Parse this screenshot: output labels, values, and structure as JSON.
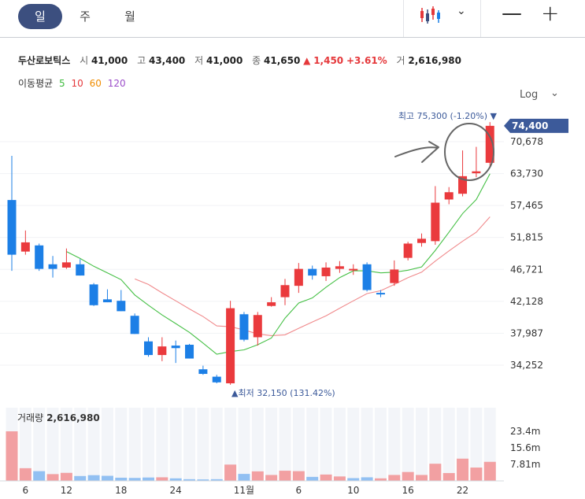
{
  "tabs": [
    {
      "label": "일",
      "active": true
    },
    {
      "label": "주",
      "active": false
    },
    {
      "label": "월",
      "active": false
    }
  ],
  "toolbar": {
    "chart_type_icon": "candlestick-icon",
    "dropdown_icon": "chevron-down-icon",
    "zoom_out_icon": "minus-icon",
    "zoom_in_icon": "plus-icon"
  },
  "stock": {
    "name": "두산로보틱스",
    "open_label": "시",
    "open": "41,000",
    "high_label": "고",
    "high": "43,400",
    "low_label": "저",
    "low": "41,000",
    "close_label": "종",
    "close": "41,650",
    "change_arrow": "▲",
    "change": "1,450",
    "change_pct": "+3.61%",
    "volume_label": "거",
    "volume": "2,616,980"
  },
  "moving_avg": {
    "label": "이동평균",
    "items": [
      {
        "period": "5",
        "color": "#3dbb3d"
      },
      {
        "period": "10",
        "color": "#e5383b"
      },
      {
        "period": "60",
        "color": "#f08c00"
      },
      {
        "period": "120",
        "color": "#9b4dca"
      }
    ]
  },
  "scale": {
    "label": "Log"
  },
  "colors": {
    "up": "#ea3a3d",
    "down": "#1c7fe6",
    "up_vol": "#f2a0a2",
    "down_vol": "#92c0f2",
    "accent": "#3c5a9a"
  },
  "chart_data": {
    "type": "candlestick",
    "scale": "log",
    "y_ticks": [
      "70,678",
      "63,730",
      "57,465",
      "51,815",
      "46,721",
      "42,128",
      "37,987",
      "34,252"
    ],
    "y_tick_values": [
      70678,
      63730,
      57465,
      51815,
      46721,
      42128,
      37987,
      34252
    ],
    "current_price_label": "74,400",
    "current_price": 74400,
    "high_annotation": {
      "label": "최고",
      "value": "75,300",
      "pct": "(-1.20%)",
      "arrow": "▼"
    },
    "low_annotation": {
      "label": "최저",
      "value": "32,150",
      "pct": "(131.42%)",
      "arrow": "▲"
    },
    "x_ticks": [
      {
        "label": "6",
        "index": 1
      },
      {
        "label": "12",
        "index": 4
      },
      {
        "label": "18",
        "index": 8
      },
      {
        "label": "24",
        "index": 12
      },
      {
        "label": "11월",
        "index": 17
      },
      {
        "label": "6",
        "index": 21
      },
      {
        "label": "10",
        "index": 25
      },
      {
        "label": "16",
        "index": 29
      },
      {
        "label": "22",
        "index": 33
      }
    ],
    "candles": [
      {
        "o": 58500,
        "h": 67500,
        "l": 46500,
        "c": 49000
      },
      {
        "o": 49500,
        "h": 53000,
        "l": 49000,
        "c": 51000
      },
      {
        "o": 50500,
        "h": 50800,
        "l": 46500,
        "c": 46800
      },
      {
        "o": 47500,
        "h": 48800,
        "l": 45500,
        "c": 46800
      },
      {
        "o": 47000,
        "h": 50000,
        "l": 46800,
        "c": 47800
      },
      {
        "o": 47500,
        "h": 48300,
        "l": 45800,
        "c": 45800
      },
      {
        "o": 44500,
        "h": 44700,
        "l": 41500,
        "c": 41600
      },
      {
        "o": 42400,
        "h": 43800,
        "l": 42000,
        "c": 42000
      },
      {
        "o": 42200,
        "h": 43700,
        "l": 40800,
        "c": 40800
      },
      {
        "o": 40200,
        "h": 40500,
        "l": 37900,
        "c": 37900
      },
      {
        "o": 37000,
        "h": 37500,
        "l": 35200,
        "c": 35400
      },
      {
        "o": 35400,
        "h": 37500,
        "l": 34700,
        "c": 36400
      },
      {
        "o": 36500,
        "h": 37100,
        "l": 34500,
        "c": 36200
      },
      {
        "o": 36600,
        "h": 36700,
        "l": 35000,
        "c": 35000
      },
      {
        "o": 33800,
        "h": 34200,
        "l": 33200,
        "c": 33300
      },
      {
        "o": 33000,
        "h": 33200,
        "l": 32300,
        "c": 32400
      },
      {
        "o": 32300,
        "h": 42200,
        "l": 32150,
        "c": 41200
      },
      {
        "o": 40400,
        "h": 40700,
        "l": 37000,
        "c": 37200
      },
      {
        "o": 37500,
        "h": 40700,
        "l": 36500,
        "c": 40300
      },
      {
        "o": 41500,
        "h": 42700,
        "l": 41400,
        "c": 42000
      },
      {
        "o": 42700,
        "h": 45300,
        "l": 41600,
        "c": 44400
      },
      {
        "o": 44300,
        "h": 47700,
        "l": 43300,
        "c": 46800
      },
      {
        "o": 46800,
        "h": 47300,
        "l": 45200,
        "c": 45800
      },
      {
        "o": 45700,
        "h": 47800,
        "l": 45000,
        "c": 47000
      },
      {
        "o": 46800,
        "h": 48000,
        "l": 46200,
        "c": 47200
      },
      {
        "o": 46600,
        "h": 47500,
        "l": 45900,
        "c": 46800
      },
      {
        "o": 47500,
        "h": 47800,
        "l": 43500,
        "c": 43700
      },
      {
        "o": 43300,
        "h": 43700,
        "l": 42700,
        "c": 43200
      },
      {
        "o": 44700,
        "h": 48100,
        "l": 44300,
        "c": 46700
      },
      {
        "o": 48500,
        "h": 51100,
        "l": 48100,
        "c": 50800
      },
      {
        "o": 50900,
        "h": 52500,
        "l": 50300,
        "c": 51600
      },
      {
        "o": 51200,
        "h": 61200,
        "l": 50600,
        "c": 58000
      },
      {
        "o": 58600,
        "h": 61000,
        "l": 57700,
        "c": 60000
      },
      {
        "o": 59700,
        "h": 68700,
        "l": 59200,
        "c": 63200
      },
      {
        "o": 63800,
        "h": 69500,
        "l": 63000,
        "c": 64200
      },
      {
        "o": 66000,
        "h": 75300,
        "l": 65000,
        "c": 74400
      }
    ],
    "ma5": [
      null,
      null,
      null,
      null,
      49500,
      48400,
      47200,
      46200,
      45200,
      43000,
      41600,
      40300,
      39200,
      38100,
      36800,
      35500,
      35800,
      36000,
      36600,
      37400,
      39900,
      41900,
      42600,
      44100,
      45500,
      46500,
      46500,
      46200,
      46300,
      46600,
      47100,
      49700,
      52700,
      56000,
      58600,
      63700
    ],
    "ma10": [
      null,
      null,
      null,
      null,
      null,
      null,
      null,
      null,
      null,
      45300,
      44500,
      43300,
      42200,
      41100,
      40100,
      38900,
      38800,
      38400,
      37900,
      37700,
      37800,
      38600,
      39400,
      40200,
      41200,
      42200,
      43200,
      43600,
      44500,
      45500,
      46300,
      48000,
      49600,
      51200,
      52700,
      55400
    ],
    "volumes": [
      {
        "v": 23400000,
        "up": true
      },
      {
        "v": 6000000,
        "up": true
      },
      {
        "v": 4600000,
        "up": false
      },
      {
        "v": 3200000,
        "up": true
      },
      {
        "v": 3800000,
        "up": true
      },
      {
        "v": 2300000,
        "up": false
      },
      {
        "v": 2700000,
        "up": false
      },
      {
        "v": 2400000,
        "up": false
      },
      {
        "v": 1500000,
        "up": false
      },
      {
        "v": 1400000,
        "up": false
      },
      {
        "v": 1600000,
        "up": false
      },
      {
        "v": 1700000,
        "up": true
      },
      {
        "v": 1200000,
        "up": false
      },
      {
        "v": 800000,
        "up": false
      },
      {
        "v": 700000,
        "up": false
      },
      {
        "v": 800000,
        "up": false
      },
      {
        "v": 7700000,
        "up": true
      },
      {
        "v": 3300000,
        "up": false
      },
      {
        "v": 4500000,
        "up": true
      },
      {
        "v": 2800000,
        "up": true
      },
      {
        "v": 4800000,
        "up": true
      },
      {
        "v": 4600000,
        "up": true
      },
      {
        "v": 1900000,
        "up": false
      },
      {
        "v": 3000000,
        "up": true
      },
      {
        "v": 2100000,
        "up": true
      },
      {
        "v": 1300000,
        "up": false
      },
      {
        "v": 1700000,
        "up": false
      },
      {
        "v": 1200000,
        "up": true
      },
      {
        "v": 2800000,
        "up": true
      },
      {
        "v": 4200000,
        "up": true
      },
      {
        "v": 2800000,
        "up": true
      },
      {
        "v": 8100000,
        "up": true
      },
      {
        "v": 3700000,
        "up": true
      },
      {
        "v": 10500000,
        "up": true
      },
      {
        "v": 6300000,
        "up": true
      },
      {
        "v": 9000000,
        "up": true
      }
    ],
    "volume_ticks": [
      "23.4m",
      "15.6m",
      "7.81m"
    ],
    "volume_tick_values": [
      23400000,
      15600000,
      7810000
    ],
    "volume_label": "거래량",
    "volume_value": "2,616,980"
  }
}
